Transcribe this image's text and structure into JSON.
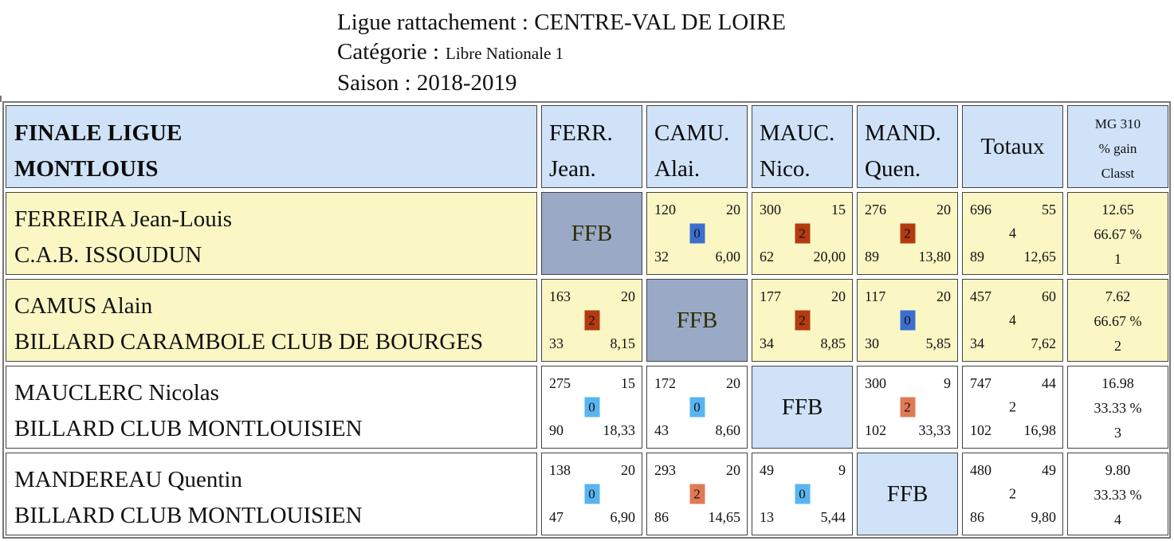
{
  "header": {
    "ligue": "Ligue rattachement : CENTRE-VAL DE LOIRE",
    "categorie_label": "Catégorie :",
    "categorie_value": "Libre Nationale 1",
    "saison": "Saison : 2018-2019"
  },
  "table": {
    "title_line1": "FINALE LIGUE",
    "title_line2": "MONTLOUIS",
    "columns": [
      {
        "line1": "FERR.",
        "line2": "Jean."
      },
      {
        "line1": "CAMU.",
        "line2": "Alai."
      },
      {
        "line1": "MAUC.",
        "line2": "Nico."
      },
      {
        "line1": "MAND.",
        "line2": "Quen."
      }
    ],
    "totals_label": "Totaux",
    "mg_label": "MG 310",
    "gain_label": "% gain",
    "classt_label": "Classt",
    "ffb_label": "FFB",
    "colors": {
      "win_dark": "#b43a10",
      "win_light": "#e07a56",
      "loss_dark": "#3a6fcf",
      "loss_light": "#5ab4f0",
      "header_bg": "#cfe2f8",
      "highlight_row_bg": "#faf7c5",
      "ffb_grey_bg": "#99a9c6"
    },
    "rows": [
      {
        "name": "FERREIRA Jean-Louis",
        "club": "C.A.B. ISSOUDUN",
        "matches": [
          null,
          {
            "points": "120",
            "reprises": "20",
            "score": "0",
            "serie": "32",
            "moyenne": "6,00",
            "color": "#3a6fcf"
          },
          {
            "points": "300",
            "reprises": "15",
            "score": "2",
            "serie": "62",
            "moyenne": "20,00",
            "color": "#b43a10"
          },
          {
            "points": "276",
            "reprises": "20",
            "score": "2",
            "serie": "89",
            "moyenne": "13,80",
            "color": "#b43a10"
          }
        ],
        "totals": {
          "points": "696",
          "reprises": "55",
          "score": "4",
          "serie": "89",
          "moyenne": "12,65"
        },
        "mg": "12.65",
        "gain": "66.67 %",
        "classt": "1"
      },
      {
        "name": "CAMUS Alain",
        "club": "BILLARD CARAMBOLE CLUB DE BOURGES",
        "matches": [
          {
            "points": "163",
            "reprises": "20",
            "score": "2",
            "serie": "33",
            "moyenne": "8,15",
            "color": "#b43a10"
          },
          null,
          {
            "points": "177",
            "reprises": "20",
            "score": "2",
            "serie": "34",
            "moyenne": "8,85",
            "color": "#b43a10"
          },
          {
            "points": "117",
            "reprises": "20",
            "score": "0",
            "serie": "30",
            "moyenne": "5,85",
            "color": "#3a6fcf"
          }
        ],
        "totals": {
          "points": "457",
          "reprises": "60",
          "score": "4",
          "serie": "34",
          "moyenne": "7,62"
        },
        "mg": "7.62",
        "gain": "66.67 %",
        "classt": "2"
      },
      {
        "name": "MAUCLERC Nicolas",
        "club": "BILLARD CLUB MONTLOUISIEN",
        "matches": [
          {
            "points": "275",
            "reprises": "15",
            "score": "0",
            "serie": "90",
            "moyenne": "18,33",
            "color": "#5ab4f0"
          },
          {
            "points": "172",
            "reprises": "20",
            "score": "0",
            "serie": "43",
            "moyenne": "8,60",
            "color": "#5ab4f0"
          },
          null,
          {
            "points": "300",
            "reprises": "9",
            "score": "2",
            "serie": "102",
            "moyenne": "33,33",
            "color": "#e07a56"
          }
        ],
        "totals": {
          "points": "747",
          "reprises": "44",
          "score": "2",
          "serie": "102",
          "moyenne": "16,98"
        },
        "mg": "16.98",
        "gain": "33.33 %",
        "classt": "3"
      },
      {
        "name": "MANDEREAU Quentin",
        "club": "BILLARD CLUB MONTLOUISIEN",
        "matches": [
          {
            "points": "138",
            "reprises": "20",
            "score": "0",
            "serie": "47",
            "moyenne": "6,90",
            "color": "#5ab4f0"
          },
          {
            "points": "293",
            "reprises": "20",
            "score": "2",
            "serie": "86",
            "moyenne": "14,65",
            "color": "#e07a56"
          },
          {
            "points": "49",
            "reprises": "9",
            "score": "0",
            "serie": "13",
            "moyenne": "5,44",
            "color": "#5ab4f0"
          },
          null
        ],
        "totals": {
          "points": "480",
          "reprises": "49",
          "score": "2",
          "serie": "86",
          "moyenne": "9,80"
        },
        "mg": "9.80",
        "gain": "33.33 %",
        "classt": "4"
      }
    ]
  }
}
